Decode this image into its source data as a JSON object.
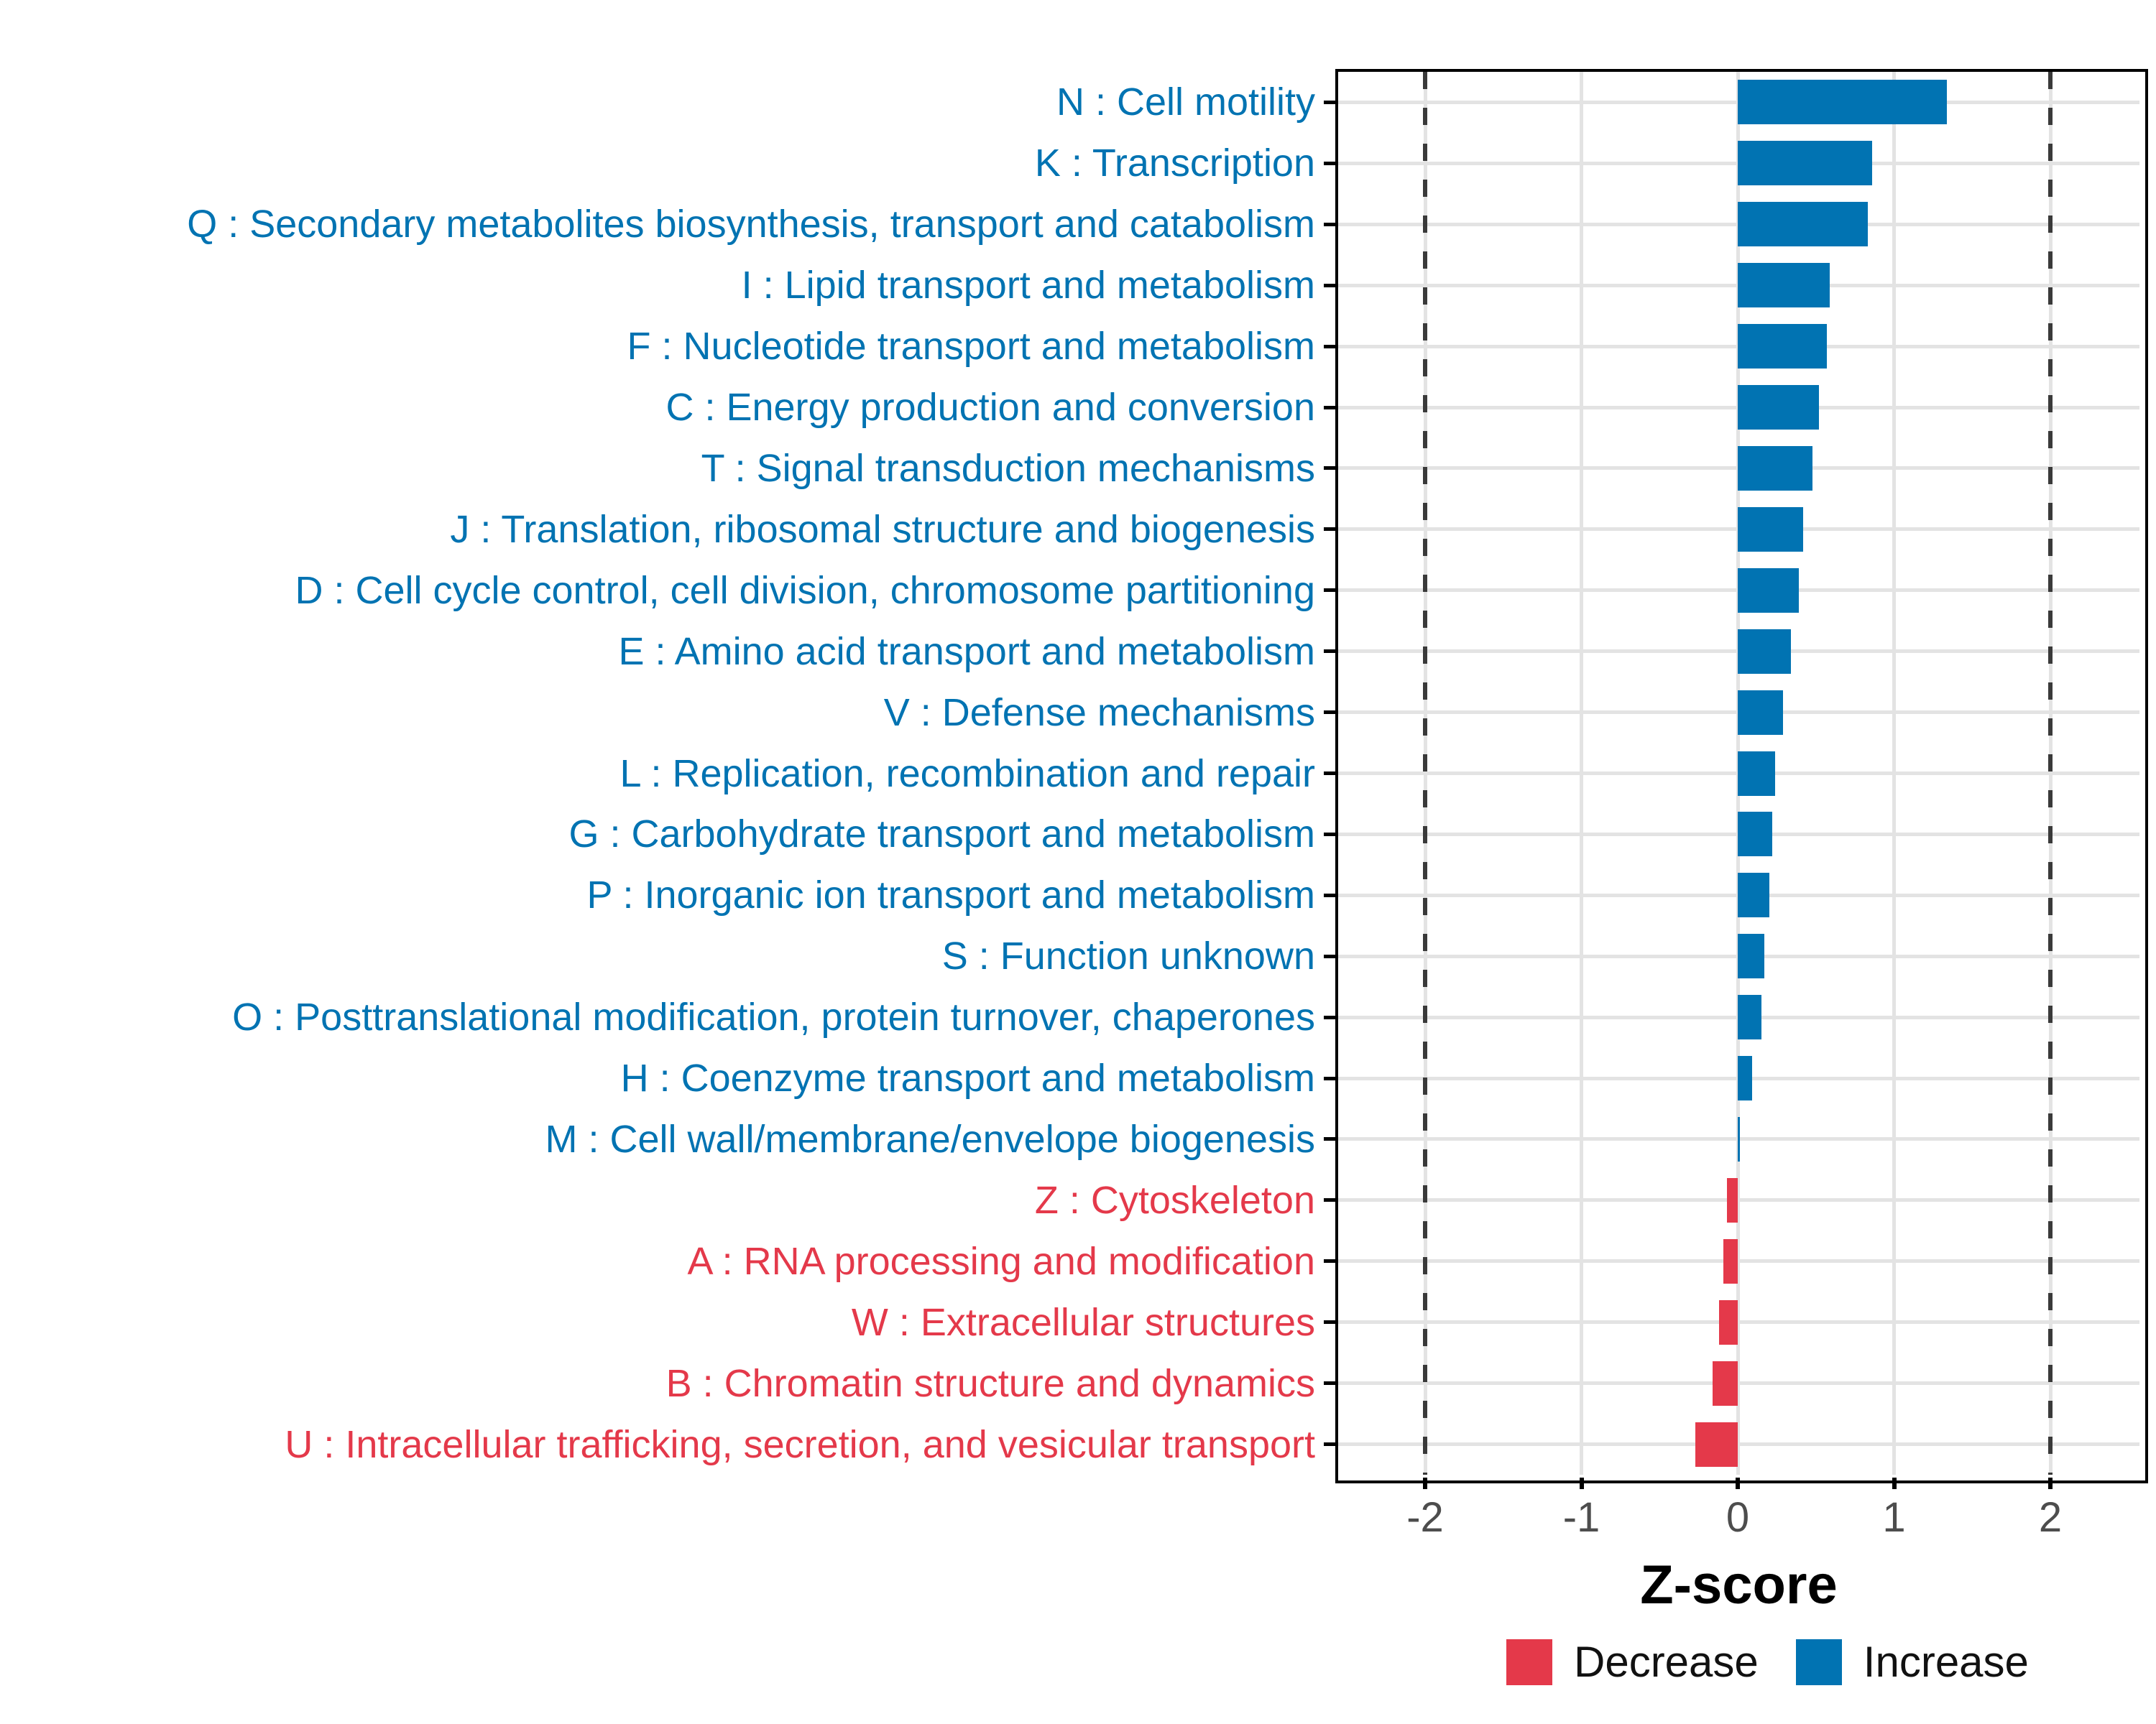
{
  "figure": {
    "xlabel": "Z-score",
    "xtick_labels": [
      "-2",
      "-1",
      "0",
      "1",
      "2"
    ]
  },
  "chart_data": {
    "type": "bar",
    "orientation": "horizontal",
    "title": "",
    "xlabel": "Z-score",
    "ylabel": "",
    "xlim": [
      -2.56,
      2.56
    ],
    "xticks": [
      -2,
      -1,
      0,
      1,
      2
    ],
    "grid": true,
    "reference_lines": {
      "style": "dashed",
      "x": [
        -2,
        2
      ]
    },
    "legend": {
      "position": "bottom-right",
      "entries": [
        {
          "label": "Decrease",
          "color": "#E4394A"
        },
        {
          "label": "Increase",
          "color": "#0173B2"
        }
      ]
    },
    "bars": [
      {
        "label": "N : Cell motility",
        "value": 1.34,
        "group": "Increase"
      },
      {
        "label": "K : Transcription",
        "value": 0.86,
        "group": "Increase"
      },
      {
        "label": "Q : Secondary metabolites biosynthesis, transport and catabolism",
        "value": 0.83,
        "group": "Increase"
      },
      {
        "label": "I : Lipid transport and metabolism",
        "value": 0.59,
        "group": "Increase"
      },
      {
        "label": "F : Nucleotide transport and metabolism",
        "value": 0.57,
        "group": "Increase"
      },
      {
        "label": "C : Energy production and conversion",
        "value": 0.52,
        "group": "Increase"
      },
      {
        "label": "T : Signal transduction mechanisms",
        "value": 0.48,
        "group": "Increase"
      },
      {
        "label": "J : Translation, ribosomal structure and biogenesis",
        "value": 0.42,
        "group": "Increase"
      },
      {
        "label": "D : Cell cycle control, cell division, chromosome partitioning",
        "value": 0.39,
        "group": "Increase"
      },
      {
        "label": "E : Amino acid transport and metabolism",
        "value": 0.34,
        "group": "Increase"
      },
      {
        "label": "V : Defense mechanisms",
        "value": 0.29,
        "group": "Increase"
      },
      {
        "label": "L : Replication, recombination and repair",
        "value": 0.24,
        "group": "Increase"
      },
      {
        "label": "G : Carbohydrate transport and metabolism",
        "value": 0.22,
        "group": "Increase"
      },
      {
        "label": "P : Inorganic ion transport and metabolism",
        "value": 0.2,
        "group": "Increase"
      },
      {
        "label": "S : Function unknown",
        "value": 0.17,
        "group": "Increase"
      },
      {
        "label": "O : Posttranslational modification, protein turnover, chaperones",
        "value": 0.15,
        "group": "Increase"
      },
      {
        "label": "H : Coenzyme transport and metabolism",
        "value": 0.09,
        "group": "Increase"
      },
      {
        "label": "M : Cell wall/membrane/envelope biogenesis",
        "value": 0.005,
        "group": "Increase"
      },
      {
        "label": "Z : Cytoskeleton",
        "value": -0.07,
        "group": "Decrease"
      },
      {
        "label": "A : RNA processing and modification",
        "value": -0.09,
        "group": "Decrease"
      },
      {
        "label": "W : Extracellular structures",
        "value": -0.12,
        "group": "Decrease"
      },
      {
        "label": "B : Chromatin structure and dynamics",
        "value": -0.16,
        "group": "Decrease"
      },
      {
        "label": "U : Intracellular trafficking, secretion, and vesicular transport",
        "value": -0.27,
        "group": "Decrease"
      }
    ]
  },
  "colors": {
    "increase": "#0173B2",
    "decrease": "#E4394A",
    "grid": "#E3E3E3",
    "dashed_line": "#3A3A3A",
    "axis": "#000000",
    "tick_label": "#4D4D4D"
  }
}
